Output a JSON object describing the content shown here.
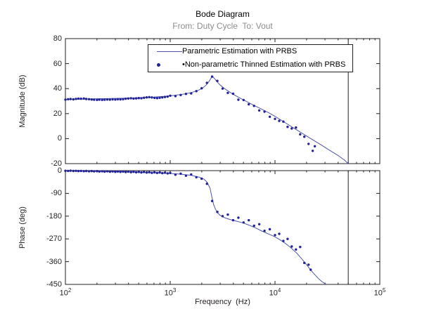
{
  "chart_data": {
    "type": "line",
    "kind": "bode-diagram",
    "title": "Bode Diagram",
    "subtitle": "From: Duty Cycle  To: Vout",
    "xlabel": "Frequency  (Hz)",
    "x_scale": "log",
    "x_range_hz": [
      100,
      100000
    ],
    "x_tick_base": "10",
    "x_ticks_exponents": [
      2,
      3,
      4,
      5
    ],
    "x_tick_labels": [
      "10^2",
      "10^3",
      "10^4",
      "10^5"
    ],
    "vertical_cutoff_line_hz": 50000,
    "grid": "off",
    "legend": {
      "position": "top-inside-magnitude-plot",
      "items": [
        {
          "label": "Parametric Estimation with PRBS",
          "marker": "line"
        },
        {
          "label": "•Non-parametric Thinned Estimation with PRBS",
          "marker": "dot"
        }
      ]
    },
    "magnitude": {
      "ylabel": "Magnitude (dB)",
      "ylim": [
        -20,
        80
      ],
      "yticks": [
        80,
        60,
        40,
        20,
        0,
        -20
      ],
      "parametric_line": [
        [
          100,
          31.4
        ],
        [
          140,
          31.6
        ],
        [
          200,
          31.9
        ],
        [
          280,
          32.1
        ],
        [
          400,
          32.4
        ],
        [
          550,
          32.8
        ],
        [
          700,
          33.2
        ],
        [
          900,
          33.9
        ],
        [
          1100,
          34.6
        ],
        [
          1350,
          35.6
        ],
        [
          1600,
          36.9
        ],
        [
          1850,
          38.6
        ],
        [
          2050,
          40.6
        ],
        [
          2200,
          42.8
        ],
        [
          2350,
          45.8
        ],
        [
          2450,
          48.3
        ],
        [
          2510,
          49.5
        ],
        [
          2580,
          49.0
        ],
        [
          2700,
          47.2
        ],
        [
          2850,
          44.8
        ],
        [
          3000,
          42.8
        ],
        [
          3300,
          40.0
        ],
        [
          3700,
          37.2
        ],
        [
          4200,
          34.4
        ],
        [
          4800,
          31.8
        ],
        [
          5500,
          29.2
        ],
        [
          6300,
          26.6
        ],
        [
          7300,
          24.0
        ],
        [
          8500,
          21.2
        ],
        [
          10000,
          17.8
        ],
        [
          12000,
          13.7
        ],
        [
          15000,
          8.6
        ],
        [
          18000,
          4.5
        ],
        [
          22000,
          0.0
        ],
        [
          27000,
          -4.6
        ],
        [
          33000,
          -9.2
        ],
        [
          40000,
          -13.5
        ],
        [
          46000,
          -17.2
        ],
        [
          50000,
          -20.0
        ]
      ],
      "nonparametric_points": [
        [
          100,
          31.2
        ],
        [
          106,
          31.5
        ],
        [
          112,
          31.7
        ],
        [
          119,
          31.4
        ],
        [
          126,
          31.8
        ],
        [
          133,
          32.0
        ],
        [
          141,
          31.9
        ],
        [
          150,
          32.1
        ],
        [
          158,
          31.7
        ],
        [
          168,
          31.5
        ],
        [
          178,
          31.3
        ],
        [
          188,
          31.1
        ],
        [
          200,
          31.0
        ],
        [
          211,
          31.2
        ],
        [
          224,
          31.0
        ],
        [
          237,
          31.1
        ],
        [
          251,
          31.3
        ],
        [
          266,
          31.2
        ],
        [
          282,
          31.4
        ],
        [
          299,
          31.3
        ],
        [
          316,
          31.5
        ],
        [
          335,
          31.4
        ],
        [
          355,
          31.6
        ],
        [
          376,
          31.9
        ],
        [
          398,
          32.1
        ],
        [
          422,
          32.3
        ],
        [
          447,
          32.0
        ],
        [
          473,
          32.2
        ],
        [
          501,
          32.4
        ],
        [
          531,
          32.3
        ],
        [
          562,
          32.7
        ],
        [
          596,
          33.0
        ],
        [
          631,
          33.2
        ],
        [
          668,
          32.9
        ],
        [
          708,
          32.6
        ],
        [
          750,
          32.4
        ],
        [
          794,
          32.7
        ],
        [
          841,
          33.0
        ],
        [
          891,
          33.3
        ],
        [
          944,
          33.6
        ],
        [
          1000,
          34.3
        ],
        [
          1122,
          34.0
        ],
        [
          1259,
          34.9
        ],
        [
          1413,
          35.8
        ],
        [
          1585,
          36.2
        ],
        [
          1778,
          38.0
        ],
        [
          1995,
          40.3
        ],
        [
          2239,
          44.6
        ],
        [
          2512,
          49.6
        ],
        [
          2818,
          46.2
        ],
        [
          3162,
          40.0
        ],
        [
          3548,
          36.6
        ],
        [
          3981,
          35.9
        ],
        [
          4467,
          31.1
        ],
        [
          5012,
          30.9
        ],
        [
          5623,
          27.4
        ],
        [
          6310,
          26.2
        ],
        [
          7079,
          22.5
        ],
        [
          7943,
          21.6
        ],
        [
          8913,
          17.5
        ],
        [
          10000,
          15.8
        ],
        [
          10965,
          14.2
        ],
        [
          12023,
          13.6
        ],
        [
          13183,
          9.4
        ],
        [
          14454,
          8.1
        ],
        [
          15849,
          8.9
        ],
        [
          17378,
          3.4
        ],
        [
          19055,
          1.5
        ],
        [
          20893,
          -4.2
        ],
        [
          22909,
          -9.8
        ],
        [
          23988,
          -6.1
        ]
      ]
    },
    "phase": {
      "ylabel": "Phase (deg)",
      "ylim": [
        -450,
        0
      ],
      "yticks": [
        0,
        -90,
        -180,
        -270,
        -360,
        -450
      ],
      "parametric_line": [
        [
          100,
          -1
        ],
        [
          160,
          -2
        ],
        [
          250,
          -3.5
        ],
        [
          400,
          -5
        ],
        [
          630,
          -7.5
        ],
        [
          800,
          -9
        ],
        [
          1000,
          -11
        ],
        [
          1250,
          -14
        ],
        [
          1600,
          -19
        ],
        [
          1900,
          -26
        ],
        [
          2100,
          -34
        ],
        [
          2250,
          -46
        ],
        [
          2400,
          -70
        ],
        [
          2500,
          -105
        ],
        [
          2600,
          -135
        ],
        [
          2700,
          -152
        ],
        [
          2850,
          -168
        ],
        [
          3000,
          -177
        ],
        [
          3300,
          -186
        ],
        [
          3700,
          -193
        ],
        [
          4200,
          -199
        ],
        [
          4900,
          -206
        ],
        [
          5600,
          -215
        ],
        [
          6500,
          -226
        ],
        [
          7500,
          -239
        ],
        [
          8400,
          -248
        ],
        [
          9200,
          -255
        ],
        [
          10000,
          -262
        ],
        [
          11000,
          -272
        ],
        [
          12500,
          -287
        ],
        [
          14000,
          -303
        ],
        [
          16000,
          -325
        ],
        [
          18000,
          -349
        ],
        [
          20000,
          -372
        ],
        [
          22000,
          -394
        ],
        [
          24000,
          -412
        ],
        [
          26000,
          -427
        ],
        [
          28000,
          -439
        ],
        [
          30000,
          -447
        ],
        [
          31000,
          -450
        ]
      ],
      "nonparametric_points": [
        [
          100,
          -0.5
        ],
        [
          106,
          -1.2
        ],
        [
          112,
          -0.4
        ],
        [
          119,
          -1.5
        ],
        [
          126,
          -0.8
        ],
        [
          133,
          -1.8
        ],
        [
          141,
          -1.0
        ],
        [
          150,
          -2.2
        ],
        [
          158,
          -1.4
        ],
        [
          168,
          -2.5
        ],
        [
          178,
          -1.6
        ],
        [
          188,
          -2.8
        ],
        [
          200,
          -2.0
        ],
        [
          211,
          -3.4
        ],
        [
          224,
          -2.4
        ],
        [
          237,
          -3.8
        ],
        [
          251,
          -2.6
        ],
        [
          266,
          -4.2
        ],
        [
          282,
          -3.0
        ],
        [
          299,
          -4.6
        ],
        [
          316,
          -3.2
        ],
        [
          335,
          -5.0
        ],
        [
          355,
          -3.6
        ],
        [
          376,
          -5.5
        ],
        [
          398,
          -4.0
        ],
        [
          422,
          -6.0
        ],
        [
          447,
          -4.5
        ],
        [
          473,
          -6.6
        ],
        [
          501,
          -5.0
        ],
        [
          531,
          -7.2
        ],
        [
          562,
          -5.4
        ],
        [
          596,
          -7.8
        ],
        [
          631,
          -6.0
        ],
        [
          668,
          -8.5
        ],
        [
          708,
          -6.6
        ],
        [
          750,
          -9.2
        ],
        [
          794,
          -7.2
        ],
        [
          841,
          -10.0
        ],
        [
          891,
          -8.0
        ],
        [
          944,
          -10.8
        ],
        [
          1000,
          -9
        ],
        [
          1122,
          -16
        ],
        [
          1259,
          -12
        ],
        [
          1413,
          -20
        ],
        [
          1585,
          -15
        ],
        [
          1778,
          -26
        ],
        [
          1995,
          -32
        ],
        [
          2239,
          -52
        ],
        [
          2512,
          -120
        ],
        [
          2818,
          -163
        ],
        [
          3162,
          -180
        ],
        [
          3548,
          -174
        ],
        [
          3981,
          -196
        ],
        [
          4467,
          -186
        ],
        [
          5012,
          -205
        ],
        [
          5623,
          -196
        ],
        [
          6310,
          -218
        ],
        [
          7079,
          -212
        ],
        [
          7943,
          -238
        ],
        [
          8913,
          -232
        ],
        [
          10000,
          -255
        ],
        [
          10965,
          -250
        ],
        [
          12023,
          -278
        ],
        [
          13183,
          -270
        ],
        [
          14454,
          -300
        ],
        [
          15849,
          -312
        ],
        [
          17378,
          -302
        ],
        [
          19055,
          -365
        ],
        [
          20893,
          -372
        ],
        [
          21900,
          -392
        ]
      ]
    },
    "colors": {
      "parametric_line": "#4d55a8",
      "nonparametric_points": "#22229b",
      "axis": "#231f20",
      "subtitle": "#8c8c8c",
      "background": "#ffffff"
    }
  }
}
